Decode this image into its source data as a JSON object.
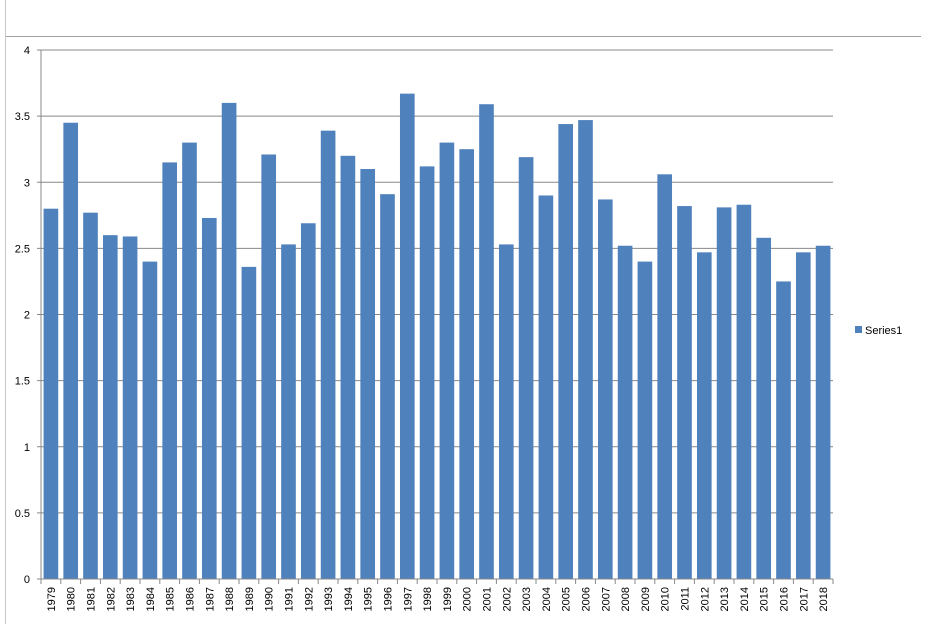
{
  "chart_data": {
    "type": "bar",
    "title": "",
    "xlabel": "",
    "ylabel": "",
    "ylim": [
      0,
      4
    ],
    "yticks": [
      "0",
      "0.5",
      "1",
      "1.5",
      "2",
      "2.5",
      "3",
      "3.5",
      "4"
    ],
    "grid": true,
    "legend_position": "right",
    "categories": [
      "1979",
      "1980",
      "1981",
      "1982",
      "1983",
      "1984",
      "1985",
      "1986",
      "1987",
      "1988",
      "1989",
      "1990",
      "1991",
      "1992",
      "1993",
      "1994",
      "1995",
      "1996",
      "1997",
      "1998",
      "1999",
      "2000",
      "2001",
      "2002",
      "2003",
      "2004",
      "2005",
      "2006",
      "2007",
      "2008",
      "2009",
      "2010",
      "2011",
      "2012",
      "2013",
      "2014",
      "2015",
      "2016",
      "2017",
      "2018"
    ],
    "series": [
      {
        "name": "Series1",
        "color": "#4f81bd",
        "values": [
          2.8,
          3.45,
          2.77,
          2.6,
          2.59,
          2.4,
          3.15,
          3.3,
          2.73,
          3.6,
          2.36,
          3.21,
          2.53,
          2.69,
          3.39,
          3.2,
          3.1,
          2.91,
          3.67,
          3.12,
          3.3,
          3.25,
          3.59,
          2.53,
          3.19,
          2.9,
          3.44,
          3.47,
          2.87,
          2.52,
          2.4,
          3.06,
          2.82,
          2.47,
          2.81,
          2.83,
          2.58,
          2.25,
          2.47,
          2.52
        ]
      }
    ],
    "colors": {
      "gridline": "#888888",
      "axis": "#888888"
    }
  }
}
